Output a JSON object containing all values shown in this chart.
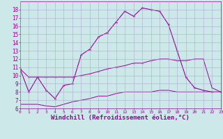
{
  "xlabel": "Windchill (Refroidissement éolien,°C)",
  "hours": [
    0,
    1,
    2,
    3,
    4,
    5,
    6,
    7,
    8,
    9,
    10,
    11,
    12,
    13,
    14,
    15,
    16,
    17,
    18,
    19,
    20,
    21,
    22,
    23
  ],
  "temp_line": [
    10.8,
    8.0,
    9.8,
    8.2,
    7.2,
    8.8,
    9.0,
    12.5,
    13.2,
    14.7,
    15.2,
    16.5,
    17.8,
    17.2,
    18.2,
    18.0,
    17.8,
    16.2,
    13.0,
    9.8,
    8.5,
    8.2,
    8.0,
    8.0
  ],
  "wc_upper": [
    10.8,
    9.8,
    9.8,
    9.8,
    9.8,
    9.8,
    9.8,
    10.0,
    10.2,
    10.5,
    10.8,
    11.0,
    11.2,
    11.5,
    11.5,
    11.8,
    12.0,
    12.0,
    11.8,
    11.8,
    12.0,
    12.0,
    8.5,
    8.0
  ],
  "wc_lower": [
    6.5,
    6.5,
    6.5,
    6.3,
    6.2,
    6.5,
    6.8,
    7.0,
    7.2,
    7.5,
    7.5,
    7.8,
    8.0,
    8.0,
    8.0,
    8.0,
    8.2,
    8.2,
    8.0,
    8.0,
    8.0,
    8.0,
    8.0,
    8.0
  ],
  "line_color": "#990099",
  "bg_color": "#cce8e8",
  "grid_color": "#aaaacc",
  "ylim": [
    6,
    19
  ],
  "yticks": [
    6,
    7,
    8,
    9,
    10,
    11,
    12,
    13,
    14,
    15,
    16,
    17,
    18
  ],
  "xtick_fontsize": 4.5,
  "ytick_fontsize": 5.5,
  "xlabel_fontsize": 6.5
}
